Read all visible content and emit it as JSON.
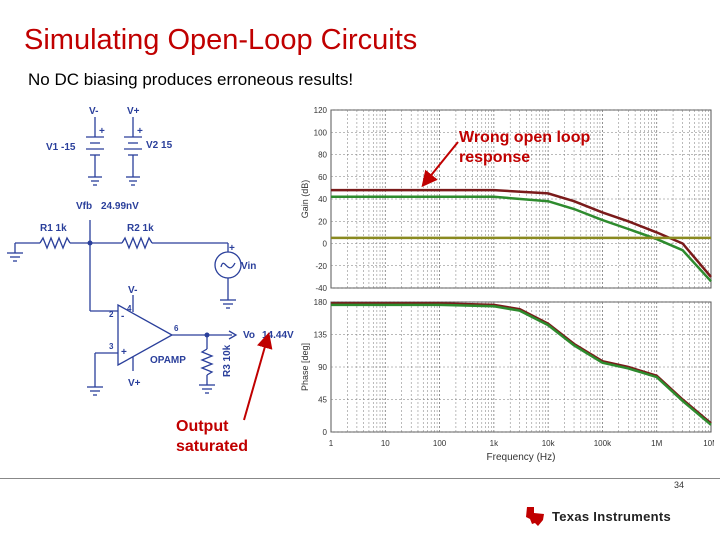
{
  "slide": {
    "title": "Simulating Open-Loop Circuits",
    "subtitle": "No DC biasing produces erroneous results!",
    "page_number": "34",
    "callout_top_line1": "Wrong open loop",
    "callout_top_line2": "response",
    "callout_bottom_line1": "Output",
    "callout_bottom_line2": "saturated",
    "logo_text": "Texas Instruments",
    "colors": {
      "title": "#c00000",
      "callout": "#c00000",
      "schematic": "#2a3f9b"
    }
  },
  "schematic": {
    "v_minus_top": "V-",
    "v_plus_top": "V+",
    "v1_label": "V1 -15",
    "v2_label": "V2 15",
    "vfb_label": "Vfb",
    "vfb_value": "24.99nV",
    "r1_label": "R1 1k",
    "r2_label": "R2 1k",
    "vin_label": "Vin",
    "opamp_v_minus": "V-",
    "opamp_v_plus": "V+",
    "pin4": "4",
    "pin2": "2",
    "pin3": "3",
    "pin6": "6",
    "pin_minus": "-",
    "pin_plus": "+",
    "opamp_label": "OPAMP",
    "vo_label": "Vo",
    "vo_value": "14.44V",
    "r3_label": "R3 10k",
    "plus": "+"
  },
  "chart_data": [
    {
      "type": "line",
      "ylabel": "Gain (dB)",
      "xscale": "log",
      "xlim": [
        1,
        10000000
      ],
      "ylim": [
        -40,
        120
      ],
      "yticks": [
        "120",
        "100",
        "80",
        "60",
        "40",
        "20",
        "0",
        "-20",
        "-40"
      ],
      "series": [
        {
          "color": "#7a1a1a",
          "x": [
            1,
            10,
            100,
            1000,
            10000,
            30000,
            100000,
            300000,
            1000000,
            3000000,
            10000000
          ],
          "y": [
            48,
            48,
            48,
            48,
            45,
            38,
            28,
            20,
            10,
            0,
            -30
          ]
        },
        {
          "color": "#2e8b2e",
          "x": [
            1,
            10,
            100,
            1000,
            10000,
            30000,
            100000,
            300000,
            1000000,
            3000000,
            10000000
          ],
          "y": [
            42,
            42,
            42,
            42,
            38,
            31,
            21,
            13,
            4,
            -6,
            -34
          ]
        },
        {
          "color": "#8a8a20",
          "x": [
            1,
            10000000
          ],
          "y": [
            5,
            5
          ]
        }
      ]
    },
    {
      "type": "line",
      "ylabel": "Phase [deg]",
      "xlabel": "Frequency (Hz)",
      "xscale": "log",
      "xlim": [
        1,
        10000000
      ],
      "ylim": [
        0,
        180
      ],
      "yticks": [
        "180",
        "135",
        "90",
        "45",
        "0"
      ],
      "xticks": [
        "1",
        "10",
        "100",
        "1k",
        "10k",
        "100k",
        "1M",
        "10M"
      ],
      "series": [
        {
          "color": "#7a1a1a",
          "x": [
            1,
            10,
            100,
            1000,
            3000,
            10000,
            30000,
            100000,
            300000,
            1000000,
            3000000,
            10000000
          ],
          "y": [
            178,
            178,
            178,
            176,
            170,
            150,
            122,
            98,
            90,
            78,
            45,
            12
          ]
        },
        {
          "color": "#2e8b2e",
          "x": [
            1,
            10,
            100,
            1000,
            3000,
            10000,
            30000,
            100000,
            300000,
            1000000,
            3000000,
            10000000
          ],
          "y": [
            176,
            176,
            176,
            174,
            168,
            148,
            120,
            96,
            88,
            76,
            43,
            10
          ]
        }
      ]
    }
  ]
}
